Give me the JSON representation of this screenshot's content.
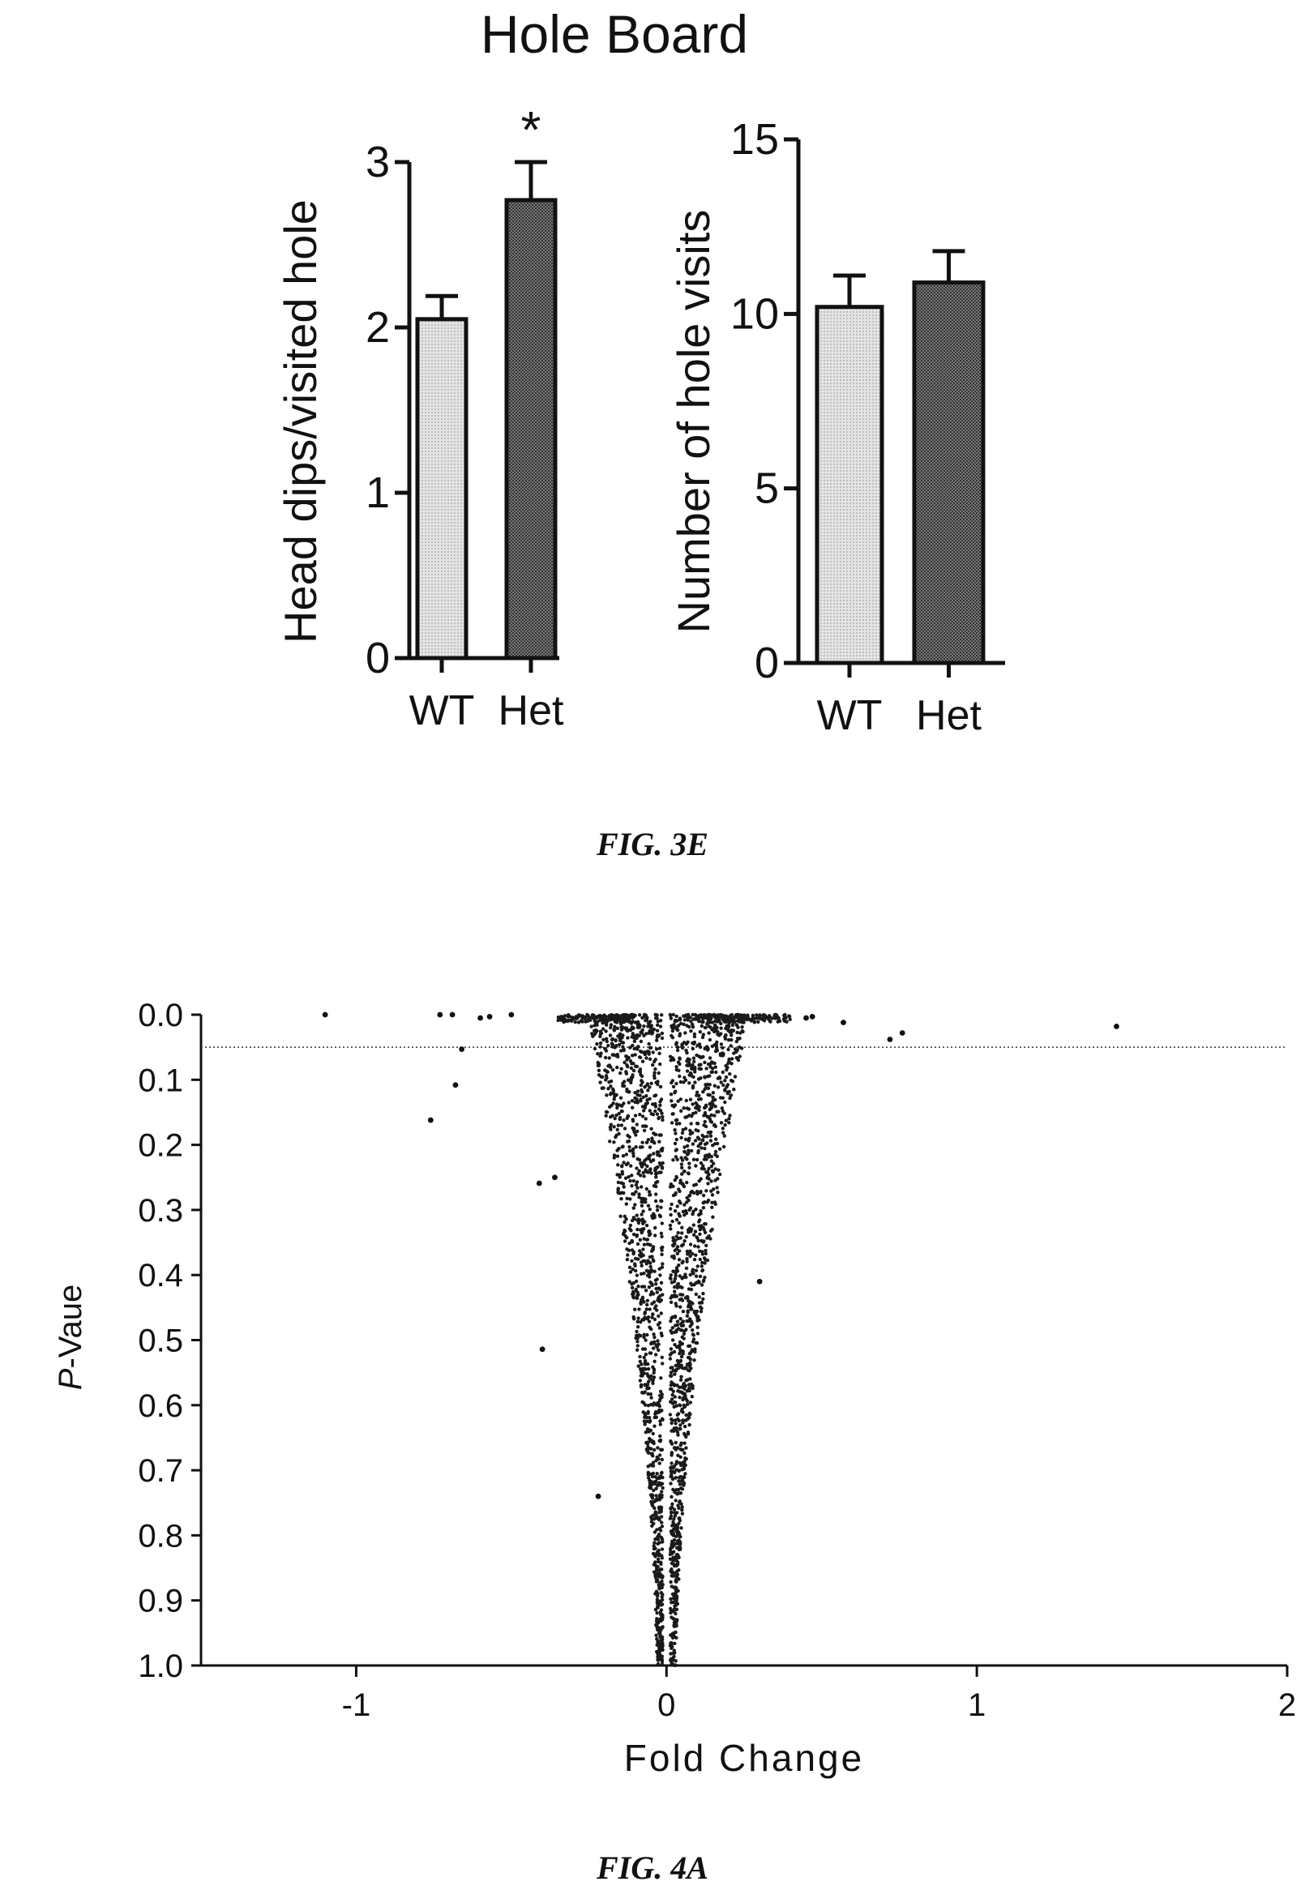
{
  "figure_title": "Hole Board",
  "captions": {
    "fig3e": "FIG. 3E",
    "fig4a": "FIG. 4A"
  },
  "colors": {
    "wt_bar": "#d6d6d6",
    "het_bar": "#555555",
    "ink": "#111111"
  },
  "chart_data": [
    {
      "type": "bar",
      "title": "",
      "ylabel": "Head dips/visited hole",
      "xlabel": "",
      "categories": [
        "WT",
        "Het"
      ],
      "values": [
        2.05,
        2.77
      ],
      "errors": [
        0.14,
        0.23
      ],
      "annotations": [
        "",
        "*"
      ],
      "ylim": [
        0,
        3
      ],
      "yticks": [
        "0",
        "1",
        "2",
        "3"
      ],
      "grid": false
    },
    {
      "type": "bar",
      "title": "",
      "ylabel": "Number of hole visits",
      "xlabel": "",
      "categories": [
        "WT",
        "Het"
      ],
      "values": [
        10.2,
        10.9
      ],
      "errors": [
        0.9,
        0.9
      ],
      "ylim": [
        0,
        15
      ],
      "yticks": [
        "0",
        "5",
        "10",
        "15"
      ],
      "grid": false
    },
    {
      "type": "scatter",
      "title": "",
      "xlabel": "Fold Change",
      "ylabel_italic": "P",
      "ylabel_rest": "-Vaue",
      "xlim": [
        -1.5,
        2
      ],
      "ylim": [
        0,
        1
      ],
      "y_inverted": true,
      "xticks": [
        "-1",
        "0",
        "1",
        "2"
      ],
      "yticks": [
        "0.0",
        "0.1",
        "0.2",
        "0.3",
        "0.4",
        "0.5",
        "0.6",
        "0.7",
        "0.8",
        "0.9",
        "1.0"
      ],
      "threshold_p": 0.05,
      "grid": false,
      "outliers": [
        {
          "x": -1.1,
          "y": 0.0
        },
        {
          "x": -0.73,
          "y": 0.0
        },
        {
          "x": -0.69,
          "y": 0.0
        },
        {
          "x": -0.6,
          "y": 0.005
        },
        {
          "x": -0.57,
          "y": 0.003
        },
        {
          "x": -0.5,
          "y": 0.0
        },
        {
          "x": -0.66,
          "y": 0.053
        },
        {
          "x": -0.68,
          "y": 0.108
        },
        {
          "x": -0.76,
          "y": 0.162
        },
        {
          "x": -0.41,
          "y": 0.259
        },
        {
          "x": -0.36,
          "y": 0.25
        },
        {
          "x": -0.4,
          "y": 0.514
        },
        {
          "x": -0.22,
          "y": 0.74
        },
        {
          "x": 0.3,
          "y": 0.41
        },
        {
          "x": 0.45,
          "y": 0.005
        },
        {
          "x": 0.47,
          "y": 0.003
        },
        {
          "x": 0.57,
          "y": 0.012
        },
        {
          "x": 0.72,
          "y": 0.038
        },
        {
          "x": 0.76,
          "y": 0.028
        },
        {
          "x": 1.45,
          "y": 0.018
        }
      ]
    }
  ]
}
